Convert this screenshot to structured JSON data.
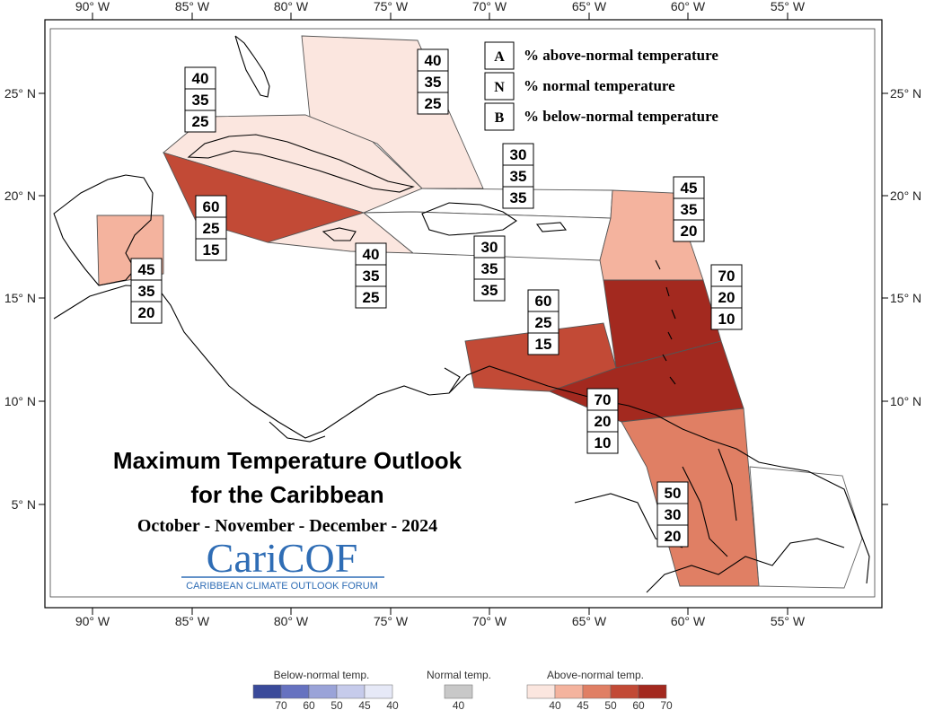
{
  "axes": {
    "lon_labels": [
      "90° W",
      "85° W",
      "80° W",
      "75° W",
      "70° W",
      "65° W",
      "60° W",
      "55° W"
    ],
    "lat_labels_left": [
      "25° N",
      "20° N",
      "15° N",
      "10° N",
      "5° N"
    ],
    "lat_labels_right": [
      "25° N",
      "20° N",
      "15° N",
      "10° N"
    ]
  },
  "legend": {
    "rows": [
      {
        "key": "A",
        "text": "% above-normal temperature"
      },
      {
        "key": "N",
        "text": "% normal temperature"
      },
      {
        "key": "B",
        "text": "% below-normal temperature"
      }
    ]
  },
  "title": {
    "line1": "Maximum Temperature Outlook",
    "line2": "for the Caribbean",
    "line3": "October - November - December - 2024"
  },
  "logo": {
    "name": "CariCOF",
    "subtitle": "CARIBBEAN CLIMATE OUTLOOK FORUM"
  },
  "regions": [
    {
      "id": "bahamas",
      "values": [
        "40",
        "35",
        "25"
      ],
      "category": "above",
      "level": 40
    },
    {
      "id": "cuba-west",
      "values": [
        "40",
        "35",
        "25"
      ],
      "category": "above",
      "level": 40
    },
    {
      "id": "cayman-jamaica",
      "values": [
        "60",
        "25",
        "15"
      ],
      "category": "above",
      "level": 60
    },
    {
      "id": "belize",
      "values": [
        "45",
        "35",
        "20"
      ],
      "category": "above",
      "level": 45
    },
    {
      "id": "jamaica-south",
      "values": [
        "40",
        "35",
        "25"
      ],
      "category": "above",
      "level": 40
    },
    {
      "id": "hispaniola-north",
      "values": [
        "30",
        "35",
        "35"
      ],
      "category": "normal",
      "level": null
    },
    {
      "id": "hispaniola-south",
      "values": [
        "30",
        "35",
        "35"
      ],
      "category": "normal",
      "level": null
    },
    {
      "id": "leeward",
      "values": [
        "45",
        "35",
        "20"
      ],
      "category": "above",
      "level": 45
    },
    {
      "id": "windward",
      "values": [
        "70",
        "20",
        "10"
      ],
      "category": "above",
      "level": 70
    },
    {
      "id": "abc-islands",
      "values": [
        "60",
        "25",
        "15"
      ],
      "category": "above",
      "level": 60
    },
    {
      "id": "trinidad",
      "values": [
        "70",
        "20",
        "10"
      ],
      "category": "above",
      "level": 70
    },
    {
      "id": "guianas",
      "values": [
        "50",
        "30",
        "20"
      ],
      "category": "above",
      "level": 50
    }
  ],
  "colorbar": {
    "below": {
      "title": "Below-normal temp.",
      "ticks": [
        "70",
        "60",
        "50",
        "45",
        "40"
      ],
      "colors": [
        "#3a4a9a",
        "#6672c0",
        "#9aa3d8",
        "#c6cbeb",
        "#e6e9f7"
      ]
    },
    "normal": {
      "title": "Normal temp.",
      "ticks": [
        "40"
      ],
      "colors": [
        "#c8c8c8"
      ]
    },
    "above": {
      "title": "Above-normal temp.",
      "ticks": [
        "40",
        "45",
        "50",
        "60",
        "70"
      ],
      "colors": [
        "#fbe6df",
        "#f4b39e",
        "#e07f64",
        "#c24a36",
        "#a3291f"
      ]
    }
  }
}
